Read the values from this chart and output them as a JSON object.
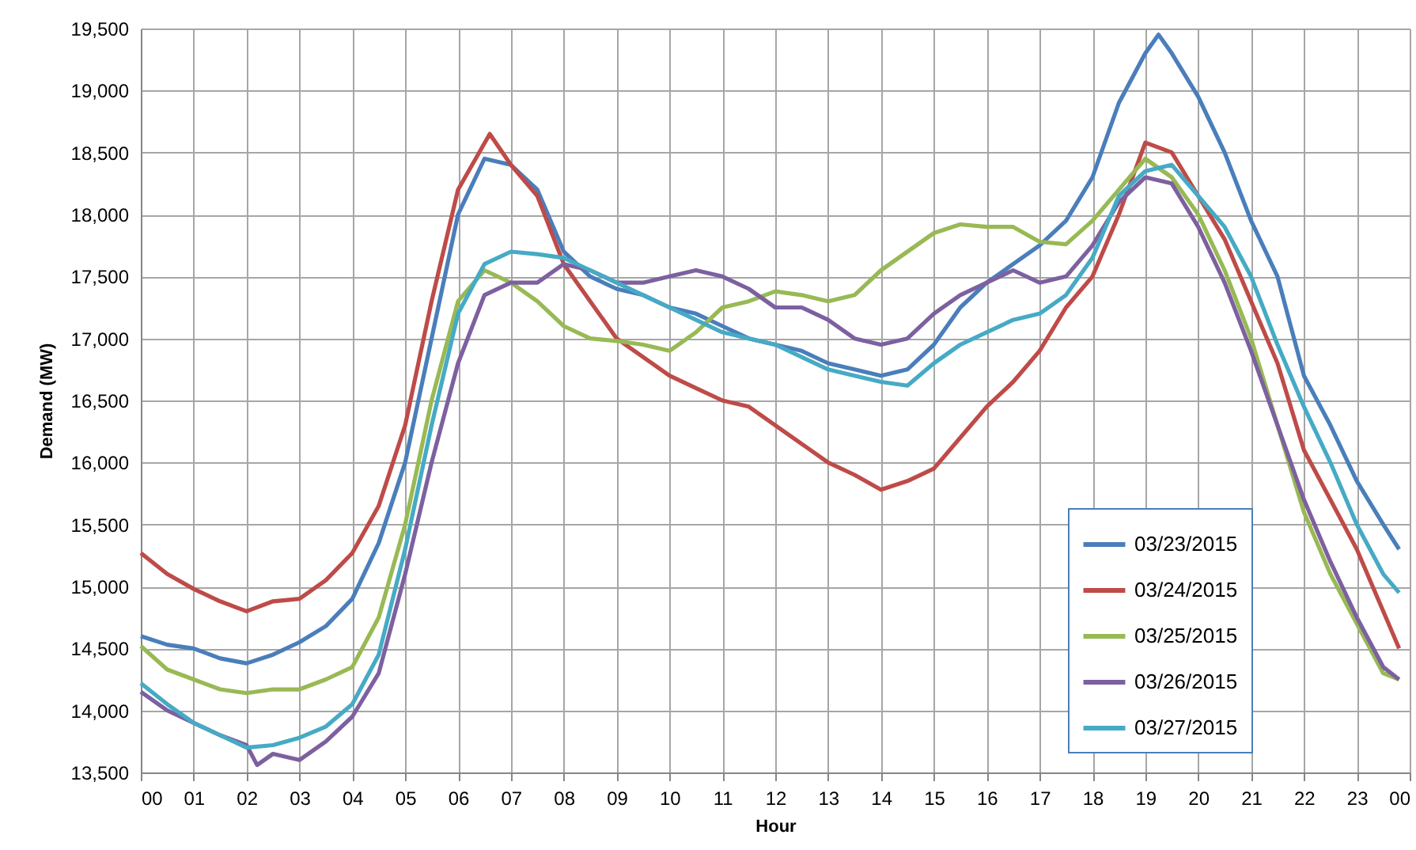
{
  "chart_data": {
    "type": "line",
    "xlabel": "Hour",
    "ylabel": "Demand (MW)",
    "xlim": [
      0,
      24
    ],
    "ylim": [
      13500,
      19500
    ],
    "xticks": [
      {
        "value": 0,
        "label": "00"
      },
      {
        "value": 1,
        "label": "01"
      },
      {
        "value": 2,
        "label": "02"
      },
      {
        "value": 3,
        "label": "03"
      },
      {
        "value": 4,
        "label": "04"
      },
      {
        "value": 5,
        "label": "05"
      },
      {
        "value": 6,
        "label": "06"
      },
      {
        "value": 7,
        "label": "07"
      },
      {
        "value": 8,
        "label": "08"
      },
      {
        "value": 9,
        "label": "09"
      },
      {
        "value": 10,
        "label": "10"
      },
      {
        "value": 11,
        "label": "11"
      },
      {
        "value": 12,
        "label": "12"
      },
      {
        "value": 13,
        "label": "13"
      },
      {
        "value": 14,
        "label": "14"
      },
      {
        "value": 15,
        "label": "15"
      },
      {
        "value": 16,
        "label": "16"
      },
      {
        "value": 17,
        "label": "17"
      },
      {
        "value": 18,
        "label": "18"
      },
      {
        "value": 19,
        "label": "19"
      },
      {
        "value": 20,
        "label": "20"
      },
      {
        "value": 21,
        "label": "21"
      },
      {
        "value": 22,
        "label": "22"
      },
      {
        "value": 23,
        "label": "23"
      },
      {
        "value": 24,
        "label": "00"
      }
    ],
    "yticks": [
      {
        "value": 13500,
        "label": "13,500"
      },
      {
        "value": 14000,
        "label": "14,000"
      },
      {
        "value": 14500,
        "label": "14,500"
      },
      {
        "value": 15000,
        "label": "15,000"
      },
      {
        "value": 15500,
        "label": "15,500"
      },
      {
        "value": 16000,
        "label": "16,000"
      },
      {
        "value": 16500,
        "label": "16,500"
      },
      {
        "value": 17000,
        "label": "17,000"
      },
      {
        "value": 17500,
        "label": "17,500"
      },
      {
        "value": 18000,
        "label": "18,000"
      },
      {
        "value": 18500,
        "label": "18,500"
      },
      {
        "value": 19000,
        "label": "19,000"
      },
      {
        "value": 19500,
        "label": "19,500"
      }
    ],
    "grid": true,
    "legend": "bottom right",
    "series": [
      {
        "name": "03/23/2015",
        "color": "#4a7ebb",
        "x": [
          0,
          0.5,
          1,
          1.5,
          2,
          2.5,
          3,
          3.5,
          4,
          4.5,
          5,
          5.5,
          6,
          6.5,
          7,
          7.5,
          8,
          8.5,
          9,
          9.5,
          10,
          10.5,
          11,
          11.5,
          12,
          12.5,
          13,
          13.5,
          14,
          14.5,
          15,
          15.5,
          16,
          16.5,
          17,
          17.5,
          18,
          18.5,
          19,
          19.25,
          19.5,
          20,
          20.5,
          21,
          21.5,
          22,
          22.5,
          23,
          23.5,
          23.8
        ],
        "values": [
          14600,
          14530,
          14500,
          14420,
          14380,
          14450,
          14550,
          14680,
          14900,
          15350,
          16000,
          17000,
          18000,
          18450,
          18400,
          18200,
          17700,
          17500,
          17400,
          17350,
          17250,
          17200,
          17100,
          17000,
          16950,
          16900,
          16800,
          16750,
          16700,
          16750,
          16950,
          17250,
          17450,
          17600,
          17750,
          17950,
          18300,
          18900,
          19300,
          19450,
          19300,
          18950,
          18500,
          17950,
          17500,
          16700,
          16300,
          15850,
          15500,
          15300
        ]
      },
      {
        "name": "03/24/2015",
        "color": "#be4b48",
        "x": [
          0,
          0.5,
          1,
          1.5,
          2,
          2.5,
          3,
          3.5,
          4,
          4.5,
          5,
          5.5,
          6,
          6.6,
          7,
          7.5,
          8,
          8.5,
          9,
          9.5,
          10,
          10.5,
          11,
          11.5,
          12,
          12.5,
          13,
          13.5,
          14,
          14.5,
          15,
          15.5,
          16,
          16.5,
          17,
          17.5,
          18,
          18.5,
          19,
          19.5,
          20,
          20.5,
          21,
          21.5,
          22,
          22.5,
          23,
          23.5,
          23.8
        ],
        "values": [
          15270,
          15100,
          14980,
          14880,
          14800,
          14880,
          14900,
          15050,
          15270,
          15650,
          16300,
          17300,
          18200,
          18650,
          18400,
          18150,
          17600,
          17300,
          17000,
          16850,
          16700,
          16600,
          16500,
          16450,
          16300,
          16150,
          16000,
          15900,
          15780,
          15850,
          15950,
          16200,
          16450,
          16650,
          16900,
          17250,
          17500,
          18000,
          18580,
          18500,
          18150,
          17800,
          17300,
          16800,
          16100,
          15700,
          15300,
          14800,
          14500
        ]
      },
      {
        "name": "03/25/2015",
        "color": "#98b954",
        "x": [
          0,
          0.5,
          1,
          1.5,
          2,
          2.5,
          3,
          3.5,
          4,
          4.5,
          5,
          5.5,
          6,
          6.5,
          7,
          7.5,
          8,
          8.5,
          9,
          9.5,
          10,
          10.5,
          11,
          11.5,
          12,
          12.5,
          13,
          13.5,
          14,
          14.5,
          15,
          15.5,
          16,
          16.5,
          17,
          17.5,
          18,
          18.5,
          19,
          19.5,
          20,
          20.5,
          21,
          21.5,
          22,
          22.5,
          23,
          23.5,
          23.8
        ],
        "values": [
          14520,
          14330,
          14250,
          14170,
          14140,
          14170,
          14170,
          14250,
          14350,
          14750,
          15500,
          16500,
          17300,
          17550,
          17450,
          17300,
          17100,
          17000,
          16980,
          16950,
          16900,
          17050,
          17250,
          17300,
          17380,
          17350,
          17300,
          17350,
          17550,
          17700,
          17850,
          17920,
          17900,
          17900,
          17780,
          17760,
          17950,
          18200,
          18450,
          18300,
          18000,
          17550,
          17000,
          16300,
          15600,
          15100,
          14700,
          14300,
          14250
        ]
      },
      {
        "name": "03/26/2015",
        "color": "#7d60a0",
        "x": [
          0,
          0.5,
          1,
          1.5,
          2,
          2.2,
          2.5,
          3,
          3.5,
          4,
          4.5,
          5,
          5.5,
          6,
          6.5,
          7,
          7.5,
          8,
          8.5,
          9,
          9.5,
          10,
          10.5,
          11,
          11.5,
          12,
          12.5,
          13,
          13.5,
          14,
          14.5,
          15,
          15.5,
          16,
          16.5,
          17,
          17.5,
          18,
          18.5,
          19,
          19.5,
          20,
          20.5,
          21,
          21.5,
          22,
          22.5,
          23,
          23.5,
          23.8
        ],
        "values": [
          14150,
          14000,
          13900,
          13800,
          13720,
          13560,
          13650,
          13600,
          13750,
          13950,
          14300,
          15100,
          16000,
          16800,
          17350,
          17450,
          17450,
          17600,
          17550,
          17450,
          17450,
          17500,
          17550,
          17500,
          17400,
          17250,
          17250,
          17150,
          17000,
          16950,
          17000,
          17200,
          17350,
          17450,
          17550,
          17450,
          17500,
          17750,
          18100,
          18300,
          18250,
          17900,
          17450,
          16900,
          16300,
          15700,
          15200,
          14750,
          14350,
          14250
        ]
      },
      {
        "name": "03/27/2015",
        "color": "#46aac5",
        "x": [
          0,
          0.5,
          1,
          1.5,
          2,
          2.5,
          3,
          3.5,
          4,
          4.5,
          5,
          5.5,
          6,
          6.5,
          7,
          7.5,
          8,
          8.5,
          9,
          9.5,
          10,
          10.5,
          11,
          11.5,
          12,
          12.5,
          13,
          13.5,
          14,
          14.5,
          15,
          15.5,
          16,
          16.5,
          17,
          17.5,
          18,
          18.5,
          19,
          19.5,
          20,
          20.5,
          21,
          21.5,
          22,
          22.5,
          23,
          23.5,
          23.8
        ],
        "values": [
          14220,
          14050,
          13900,
          13800,
          13700,
          13720,
          13780,
          13870,
          14050,
          14450,
          15300,
          16300,
          17200,
          17600,
          17700,
          17680,
          17650,
          17550,
          17450,
          17350,
          17250,
          17150,
          17050,
          17000,
          16950,
          16850,
          16750,
          16700,
          16650,
          16620,
          16800,
          16950,
          17050,
          17150,
          17200,
          17350,
          17650,
          18150,
          18350,
          18400,
          18150,
          17900,
          17500,
          16950,
          16450,
          16000,
          15500,
          15100,
          14950
        ]
      }
    ]
  }
}
